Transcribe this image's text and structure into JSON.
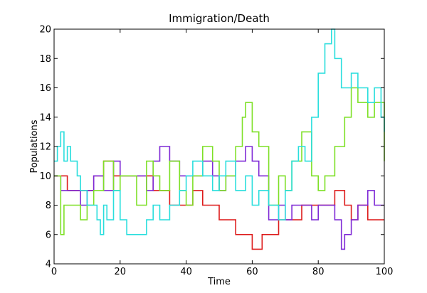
{
  "chart_data": {
    "type": "line",
    "step": true,
    "title": "Immigration/Death",
    "xlabel": "Time",
    "ylabel": "Populations",
    "xlim": [
      0,
      100
    ],
    "ylim": [
      4,
      20
    ],
    "xticks": [
      0,
      20,
      40,
      60,
      80,
      100
    ],
    "yticks": [
      4,
      6,
      8,
      10,
      12,
      14,
      16,
      18,
      20
    ],
    "grid": false,
    "series": [
      {
        "color": "#dd1c1c",
        "x": [
          0,
          3,
          4,
          10,
          12,
          15,
          18,
          25,
          30,
          35,
          38,
          42,
          45,
          48,
          50,
          55,
          60,
          63,
          65,
          68,
          72,
          75,
          80,
          85,
          88,
          90,
          92,
          95,
          100
        ],
        "y": [
          10,
          10,
          9,
          9,
          10,
          11,
          10,
          10,
          9,
          8,
          8,
          9,
          8,
          8,
          7,
          6,
          5,
          6,
          6,
          7,
          7,
          8,
          8,
          9,
          8,
          7,
          8,
          7,
          7
        ]
      },
      {
        "color": "#7f2ad6",
        "x": [
          0,
          2,
          5,
          8,
          10,
          12,
          15,
          18,
          20,
          25,
          28,
          30,
          32,
          35,
          38,
          40,
          45,
          48,
          50,
          52,
          55,
          58,
          60,
          62,
          65,
          68,
          70,
          72,
          75,
          78,
          80,
          82,
          85,
          87,
          88,
          90,
          92,
          95,
          97,
          100
        ],
        "y": [
          10,
          9,
          9,
          8,
          9,
          10,
          9,
          11,
          10,
          10,
          9,
          11,
          12,
          11,
          10,
          10,
          11,
          10,
          9,
          10,
          11,
          12,
          11,
          10,
          7,
          8,
          7,
          8,
          8,
          7,
          8,
          8,
          7,
          5,
          6,
          7,
          8,
          9,
          8,
          8
        ]
      },
      {
        "color": "#7ee027",
        "x": [
          0,
          2,
          3,
          5,
          8,
          10,
          12,
          15,
          18,
          20,
          22,
          25,
          28,
          30,
          32,
          35,
          38,
          40,
          42,
          45,
          48,
          50,
          52,
          55,
          57,
          58,
          60,
          62,
          65,
          68,
          70,
          72,
          75,
          78,
          80,
          82,
          85,
          88,
          90,
          92,
          95,
          97,
          100
        ],
        "y": [
          10,
          6,
          8,
          8,
          7,
          8,
          9,
          11,
          9,
          10,
          10,
          8,
          11,
          10,
          9,
          11,
          9,
          8,
          10,
          12,
          11,
          9,
          10,
          12,
          14,
          15,
          13,
          12,
          8,
          10,
          9,
          11,
          13,
          10,
          9,
          10,
          12,
          14,
          16,
          15,
          14,
          15,
          11
        ]
      },
      {
        "color": "#29dedd",
        "x": [
          0,
          1,
          2,
          3,
          4,
          5,
          7,
          8,
          10,
          13,
          14,
          15,
          16,
          18,
          20,
          22,
          25,
          28,
          30,
          32,
          35,
          38,
          40,
          42,
          45,
          48,
          50,
          52,
          55,
          58,
          60,
          62,
          65,
          68,
          70,
          72,
          74,
          76,
          78,
          80,
          82,
          84,
          85,
          87,
          90,
          92,
          95,
          97,
          99,
          100
        ],
        "y": [
          11,
          12,
          13,
          11,
          12,
          11,
          10,
          9,
          8,
          7,
          6,
          8,
          7,
          9,
          7,
          6,
          6,
          7,
          8,
          7,
          8,
          9,
          10,
          11,
          10,
          9,
          10,
          11,
          9,
          10,
          8,
          9,
          8,
          7,
          9,
          11,
          12,
          11,
          14,
          17,
          19,
          20,
          18,
          16,
          17,
          16,
          15,
          16,
          14,
          13
        ]
      }
    ]
  }
}
